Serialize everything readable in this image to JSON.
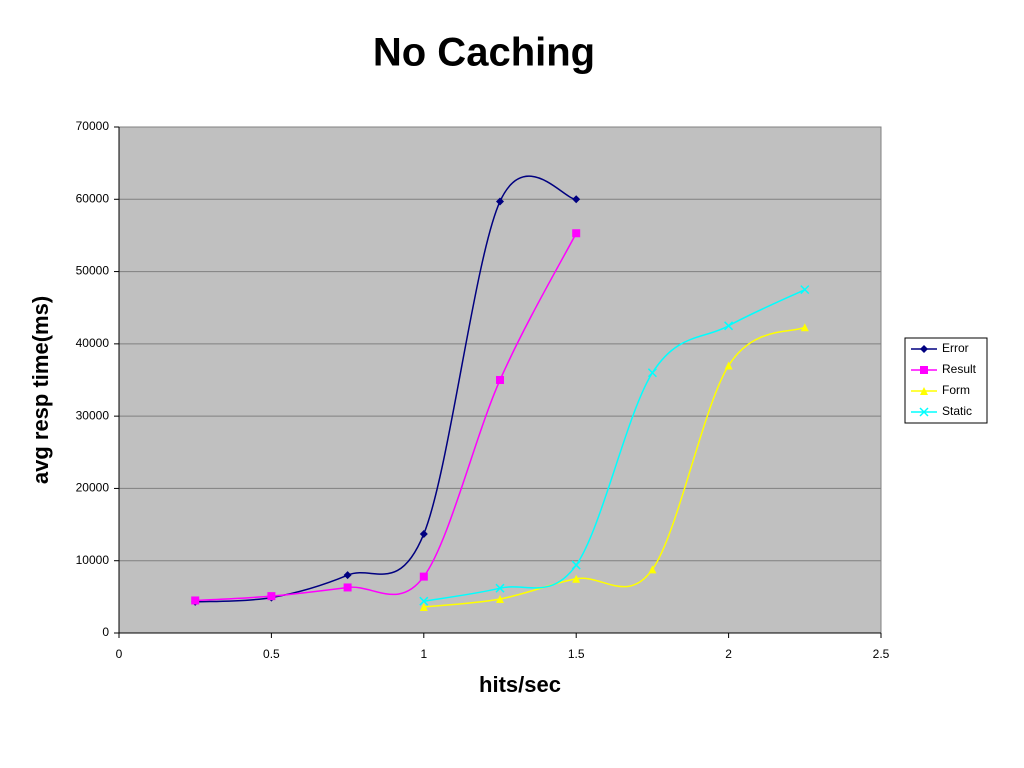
{
  "chart_data": {
    "type": "line",
    "title": "No Caching",
    "x_label": "hits/sec",
    "y_label": "avg resp time(ms)",
    "series": [
      {
        "name": "Error",
        "color": "#000080",
        "marker": "diamond",
        "x": [
          0.25,
          0.5,
          0.75,
          1,
          1.25,
          1.5
        ],
        "values": [
          4300,
          4900,
          8000,
          13700,
          59700,
          60000
        ]
      },
      {
        "name": "Result",
        "color": "#ff00ff",
        "marker": "square",
        "x": [
          0.25,
          0.5,
          0.75,
          1,
          1.25,
          1.5
        ],
        "values": [
          4500,
          5100,
          6300,
          7800,
          35000,
          55300
        ]
      },
      {
        "name": "Form",
        "color": "#ffff00",
        "marker": "triangle",
        "x": [
          1,
          1.25,
          1.5,
          1.75,
          2,
          2.25
        ],
        "values": [
          3600,
          4700,
          7500,
          8800,
          37000,
          42300
        ]
      },
      {
        "name": "Static",
        "color": "#00ffff",
        "marker": "x",
        "x": [
          1,
          1.25,
          1.5,
          1.75,
          2,
          2.25
        ],
        "values": [
          4400,
          6200,
          9400,
          36000,
          42500,
          47500
        ]
      }
    ],
    "xlim": [
      0,
      2.5
    ],
    "xticks": [
      0,
      0.5,
      1,
      1.5,
      2,
      2.5
    ],
    "ylim": [
      0,
      70000
    ],
    "yticks": [
      0,
      10000,
      20000,
      30000,
      40000,
      50000,
      60000,
      70000
    ],
    "grid": true,
    "legend": "right",
    "plot_background": "#c0c0c0"
  }
}
